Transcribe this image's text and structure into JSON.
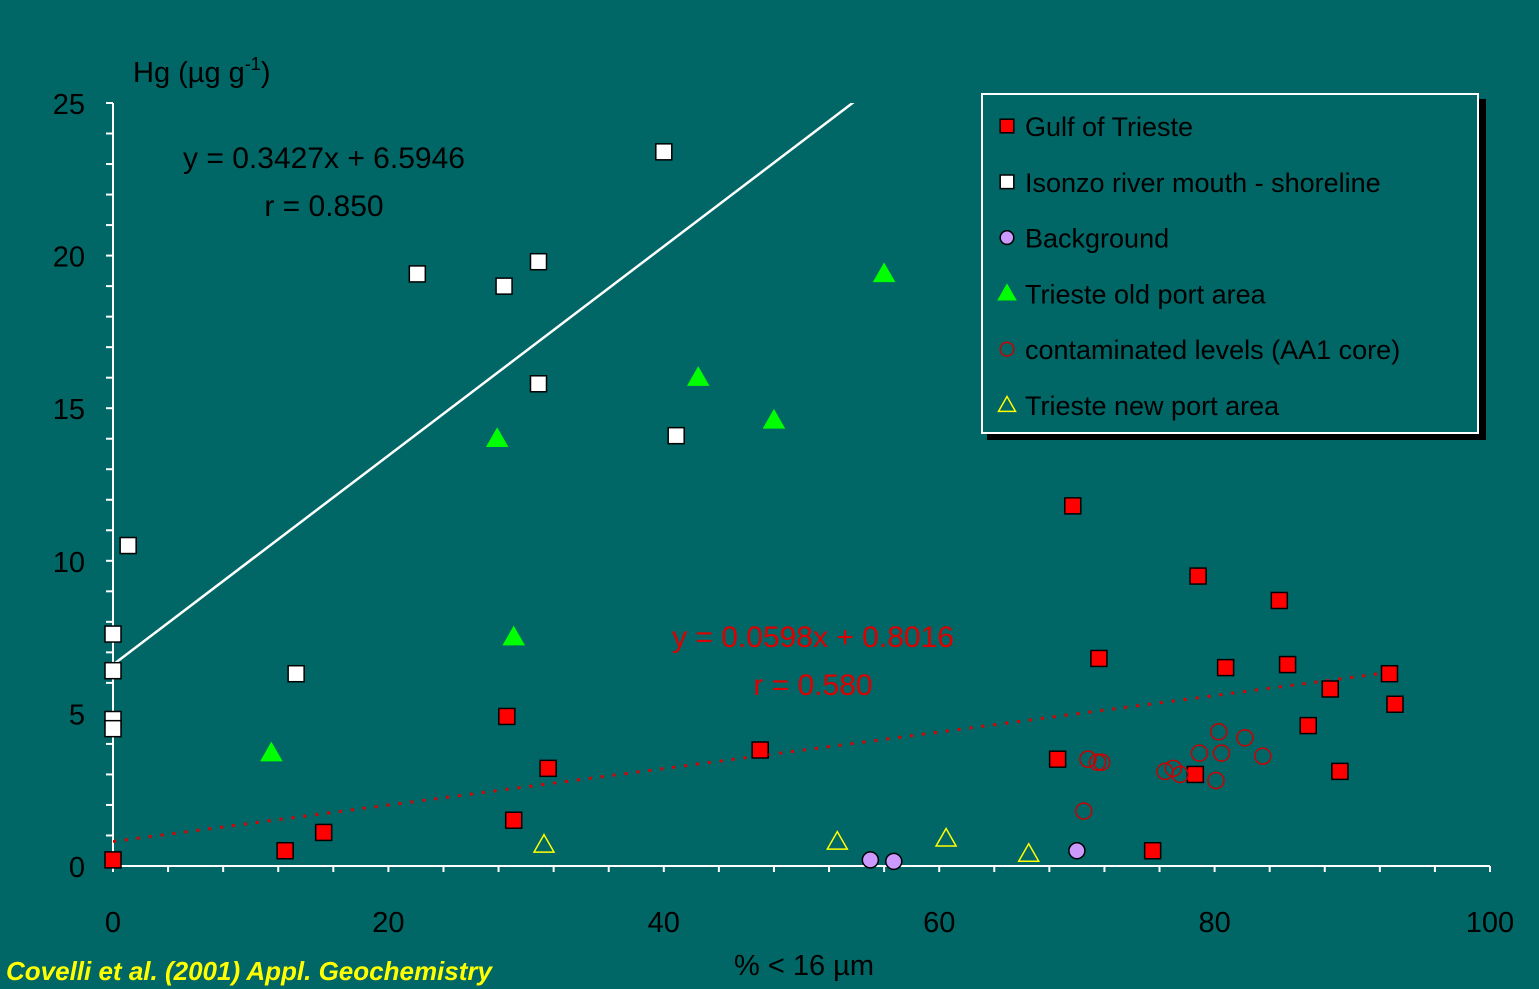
{
  "chart_data": {
    "type": "scatter",
    "ylabel": "Hg (µg g",
    "ylabel_sup": "-1",
    "ylabel_close": ")",
    "xlabel": "% <  16 µm",
    "xlim": [
      0,
      100
    ],
    "ylim": [
      0,
      25
    ],
    "xticks": [
      0,
      20,
      40,
      60,
      80,
      100
    ],
    "yticks": [
      0,
      5,
      10,
      15,
      20,
      25
    ],
    "grid": false,
    "legend_position": "top-right",
    "series": [
      {
        "name": "Gulf of Trieste",
        "marker": "square",
        "fill": "#ff0000",
        "stroke": "#000000",
        "points": [
          [
            0,
            0.2
          ],
          [
            12.5,
            0.5
          ],
          [
            15.3,
            1.1
          ],
          [
            28.6,
            4.9
          ],
          [
            29.1,
            1.5
          ],
          [
            31.6,
            3.2
          ],
          [
            47,
            3.8
          ],
          [
            68.6,
            3.5
          ],
          [
            69.7,
            11.8
          ],
          [
            71.6,
            6.8
          ],
          [
            75.5,
            0.5
          ],
          [
            78.6,
            3.0
          ],
          [
            78.8,
            9.5
          ],
          [
            80.8,
            6.5
          ],
          [
            84.7,
            8.7
          ],
          [
            85.3,
            6.6
          ],
          [
            86.8,
            4.6
          ],
          [
            88.4,
            5.8
          ],
          [
            89.1,
            3.1
          ],
          [
            92.7,
            6.3
          ],
          [
            93.1,
            5.3
          ]
        ]
      },
      {
        "name": "Isonzo river mouth - shoreline",
        "marker": "square",
        "fill": "#ffffff",
        "stroke": "#000000",
        "points": [
          [
            0,
            7.6
          ],
          [
            0,
            6.4
          ],
          [
            0,
            4.8
          ],
          [
            0,
            4.5
          ],
          [
            1.1,
            10.5
          ],
          [
            13.3,
            6.3
          ],
          [
            22.1,
            19.4
          ],
          [
            28.4,
            19.0
          ],
          [
            30.9,
            19.8
          ],
          [
            30.9,
            15.8
          ],
          [
            40,
            23.4
          ],
          [
            40.9,
            14.1
          ]
        ]
      },
      {
        "name": "Background",
        "marker": "circle",
        "fill": "#cc99ff",
        "stroke": "#000000",
        "points": [
          [
            55,
            0.2
          ],
          [
            56.7,
            0.15
          ],
          [
            70,
            0.5
          ]
        ]
      },
      {
        "name": "Trieste old port area",
        "marker": "triangle",
        "fill": "#00ff00",
        "stroke": "#00ff00",
        "points": [
          [
            11.5,
            3.7
          ],
          [
            27.9,
            14.0
          ],
          [
            29.1,
            7.5
          ],
          [
            42.5,
            16.0
          ],
          [
            48,
            14.6
          ],
          [
            56,
            19.4
          ]
        ]
      },
      {
        "name": "contaminated levels (AA1 core)",
        "marker": "circle-open",
        "fill": "none",
        "stroke": "#cc0000",
        "points": [
          [
            70.5,
            1.8
          ],
          [
            70.8,
            3.5
          ],
          [
            71.5,
            3.4
          ],
          [
            71.8,
            3.4
          ],
          [
            76.4,
            3.1
          ],
          [
            77,
            3.2
          ],
          [
            77.5,
            3.0
          ],
          [
            78.9,
            3.7
          ],
          [
            80.1,
            2.8
          ],
          [
            80.3,
            4.4
          ],
          [
            80.5,
            3.7
          ],
          [
            82.2,
            4.2
          ],
          [
            83.5,
            3.6
          ]
        ]
      },
      {
        "name": "Trieste new port area",
        "marker": "triangle-open",
        "fill": "none",
        "stroke": "#ffff00",
        "points": [
          [
            31.3,
            0.7
          ],
          [
            52.6,
            0.8
          ],
          [
            60.5,
            0.9
          ],
          [
            66.5,
            0.4
          ]
        ]
      }
    ],
    "trendlines": [
      {
        "style": "solid",
        "color": "#ffffff",
        "slope": 0.3427,
        "intercept": 6.5946,
        "x_range": [
          0,
          100
        ],
        "equation": "y = 0.3427x + 6.5946",
        "r_label": "r = 0.850"
      },
      {
        "style": "dotted",
        "color": "#dd0000",
        "slope": 0.0598,
        "intercept": 0.8016,
        "x_range": [
          0,
          93
        ],
        "equation": "y = 0.0598x + 0.8016",
        "r_label": "r = 0.580"
      }
    ],
    "citation": "Covelli et al. (2001) Appl. Geochemistry"
  },
  "colors": {
    "background": "#006666",
    "axis": "#ffffff",
    "text": "#000000",
    "red_annotation": "#dd0000",
    "citation": "#ffff00"
  }
}
